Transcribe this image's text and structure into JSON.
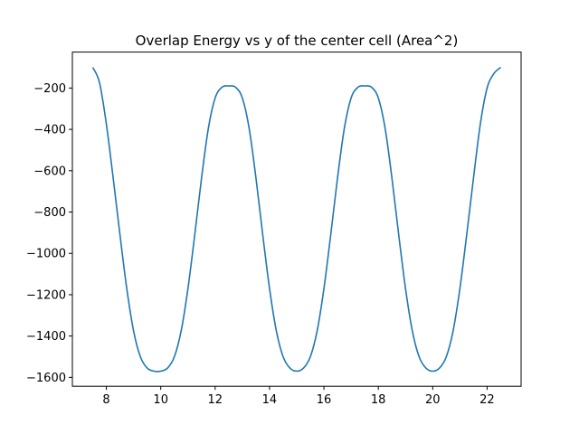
{
  "chart_data": {
    "type": "line",
    "title": "Overlap Energy vs y of the center cell (Area^2)",
    "xlabel": "",
    "ylabel": "",
    "xlim": [
      6.75,
      23.25
    ],
    "ylim": [
      -1643,
      -26
    ],
    "xticks": [
      8,
      10,
      12,
      14,
      16,
      18,
      20,
      22
    ],
    "xtick_labels": [
      "8",
      "10",
      "12",
      "14",
      "16",
      "18",
      "20",
      "22"
    ],
    "yticks": [
      -1600,
      -1400,
      -1200,
      -1000,
      -800,
      -600,
      -400,
      -200
    ],
    "ytick_labels": [
      "−1600",
      "−1400",
      "−1200",
      "−1000",
      "−800",
      "−600",
      "−400",
      "−200"
    ],
    "grid": false,
    "legend": "none",
    "series": [
      {
        "color": "#1f77b4",
        "x": [
          7.5,
          7.75,
          8.0,
          8.25,
          8.5,
          8.75,
          9.0,
          9.25,
          9.5,
          9.75,
          10.0,
          10.25,
          10.5,
          10.75,
          11.0,
          11.25,
          11.5,
          11.75,
          12.0,
          12.25,
          12.5,
          12.75,
          13.0,
          13.25,
          13.5,
          13.75,
          14.0,
          14.25,
          14.5,
          14.75,
          15.0,
          15.25,
          15.5,
          15.75,
          16.0,
          16.25,
          16.5,
          16.75,
          17.0,
          17.25,
          17.5,
          17.75,
          18.0,
          18.25,
          18.5,
          18.75,
          19.0,
          19.25,
          19.5,
          19.75,
          20.0,
          20.25,
          20.5,
          20.75,
          21.0,
          21.25,
          21.5,
          21.75,
          22.0,
          22.25,
          22.5
        ],
        "y": [
          -100,
          -175,
          -375,
          -635,
          -910,
          -1170,
          -1375,
          -1500,
          -1555,
          -1570,
          -1570,
          -1555,
          -1500,
          -1375,
          -1170,
          -910,
          -635,
          -395,
          -248,
          -196,
          -190,
          -196,
          -248,
          -395,
          -635,
          -910,
          -1170,
          -1375,
          -1500,
          -1555,
          -1570,
          -1555,
          -1500,
          -1375,
          -1170,
          -910,
          -635,
          -395,
          -248,
          -196,
          -190,
          -196,
          -248,
          -395,
          -635,
          -910,
          -1170,
          -1375,
          -1500,
          -1555,
          -1570,
          -1555,
          -1500,
          -1375,
          -1170,
          -910,
          -635,
          -375,
          -200,
          -130,
          -100
        ]
      }
    ]
  }
}
